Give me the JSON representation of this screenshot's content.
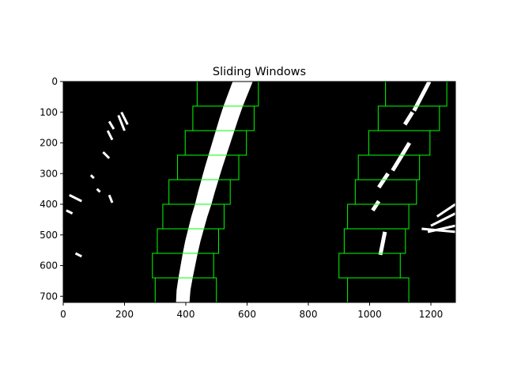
{
  "chart_data": {
    "type": "image",
    "title": "Sliding Windows",
    "xlabel": "",
    "ylabel": "",
    "xlim": [
      0,
      1280
    ],
    "ylim": [
      720,
      0
    ],
    "x_ticks": [
      0,
      200,
      400,
      600,
      800,
      1000,
      1200
    ],
    "y_ticks": [
      0,
      100,
      200,
      300,
      400,
      500,
      600,
      700
    ],
    "x_tick_labels": [
      "0",
      "200",
      "400",
      "600",
      "800",
      "1000",
      "1200"
    ],
    "y_tick_labels": [
      "0",
      "100",
      "200",
      "300",
      "400",
      "500",
      "600",
      "700"
    ],
    "background_color": "#000000",
    "pixel_color": "#ffffff",
    "window_color": "#00ff00",
    "left_windows": [
      {
        "x1": 437,
        "y1": 0,
        "x2": 637,
        "y2": 80
      },
      {
        "x1": 423,
        "y1": 80,
        "x2": 623,
        "y2": 160
      },
      {
        "x1": 398,
        "y1": 160,
        "x2": 598,
        "y2": 240
      },
      {
        "x1": 373,
        "y1": 240,
        "x2": 573,
        "y2": 320
      },
      {
        "x1": 345,
        "y1": 320,
        "x2": 545,
        "y2": 400
      },
      {
        "x1": 325,
        "y1": 400,
        "x2": 525,
        "y2": 480
      },
      {
        "x1": 307,
        "y1": 480,
        "x2": 507,
        "y2": 560
      },
      {
        "x1": 291,
        "y1": 560,
        "x2": 491,
        "y2": 640
      },
      {
        "x1": 300,
        "y1": 640,
        "x2": 500,
        "y2": 720
      }
    ],
    "right_windows": [
      {
        "x1": 1052,
        "y1": 0,
        "x2": 1252,
        "y2": 80
      },
      {
        "x1": 1028,
        "y1": 80,
        "x2": 1228,
        "y2": 160
      },
      {
        "x1": 997,
        "y1": 160,
        "x2": 1197,
        "y2": 240
      },
      {
        "x1": 963,
        "y1": 240,
        "x2": 1163,
        "y2": 320
      },
      {
        "x1": 953,
        "y1": 320,
        "x2": 1153,
        "y2": 400
      },
      {
        "x1": 928,
        "y1": 400,
        "x2": 1128,
        "y2": 480
      },
      {
        "x1": 917,
        "y1": 480,
        "x2": 1117,
        "y2": 560
      },
      {
        "x1": 900,
        "y1": 560,
        "x2": 1100,
        "y2": 640
      },
      {
        "x1": 928,
        "y1": 640,
        "x2": 1128,
        "y2": 720
      }
    ],
    "left_lane_pixels": [
      {
        "x": 390,
        "y": 720
      },
      {
        "x": 392,
        "y": 680
      },
      {
        "x": 398,
        "y": 640
      },
      {
        "x": 405,
        "y": 600
      },
      {
        "x": 412,
        "y": 560
      },
      {
        "x": 420,
        "y": 520
      },
      {
        "x": 430,
        "y": 480
      },
      {
        "x": 440,
        "y": 440
      },
      {
        "x": 452,
        "y": 400
      },
      {
        "x": 462,
        "y": 360
      },
      {
        "x": 473,
        "y": 320
      },
      {
        "x": 484,
        "y": 280
      },
      {
        "x": 496,
        "y": 240
      },
      {
        "x": 508,
        "y": 200
      },
      {
        "x": 520,
        "y": 160
      },
      {
        "x": 532,
        "y": 120
      },
      {
        "x": 545,
        "y": 80
      },
      {
        "x": 560,
        "y": 40
      },
      {
        "x": 575,
        "y": 0
      }
    ],
    "right_lane_segments": [
      {
        "x1": 1195,
        "y1": 0,
        "x2": 1145,
        "y2": 95
      },
      {
        "x1": 1140,
        "y1": 100,
        "x2": 1115,
        "y2": 140
      },
      {
        "x1": 1130,
        "y1": 200,
        "x2": 1075,
        "y2": 290
      },
      {
        "x1": 1060,
        "y1": 300,
        "x2": 1030,
        "y2": 345
      },
      {
        "x1": 1050,
        "y1": 490,
        "x2": 1035,
        "y2": 565
      },
      {
        "x1": 1030,
        "y1": 390,
        "x2": 1010,
        "y2": 420
      }
    ],
    "right_noise_segments": [
      {
        "x1": 1280,
        "y1": 400,
        "x2": 1220,
        "y2": 440
      },
      {
        "x1": 1280,
        "y1": 430,
        "x2": 1200,
        "y2": 470
      },
      {
        "x1": 1280,
        "y1": 470,
        "x2": 1190,
        "y2": 490
      },
      {
        "x1": 1280,
        "y1": 490,
        "x2": 1170,
        "y2": 480
      }
    ],
    "left_noise_segments": [
      {
        "x1": 190,
        "y1": 100,
        "x2": 210,
        "y2": 140
      },
      {
        "x1": 180,
        "y1": 110,
        "x2": 200,
        "y2": 160
      },
      {
        "x1": 150,
        "y1": 130,
        "x2": 165,
        "y2": 155
      },
      {
        "x1": 145,
        "y1": 160,
        "x2": 160,
        "y2": 190
      },
      {
        "x1": 130,
        "y1": 230,
        "x2": 150,
        "y2": 250
      },
      {
        "x1": 90,
        "y1": 305,
        "x2": 100,
        "y2": 315
      },
      {
        "x1": 20,
        "y1": 370,
        "x2": 60,
        "y2": 390
      },
      {
        "x1": 110,
        "y1": 350,
        "x2": 120,
        "y2": 360
      },
      {
        "x1": 150,
        "y1": 370,
        "x2": 160,
        "y2": 395
      },
      {
        "x1": 10,
        "y1": 420,
        "x2": 30,
        "y2": 430
      },
      {
        "x1": 40,
        "y1": 560,
        "x2": 60,
        "y2": 570
      }
    ]
  }
}
